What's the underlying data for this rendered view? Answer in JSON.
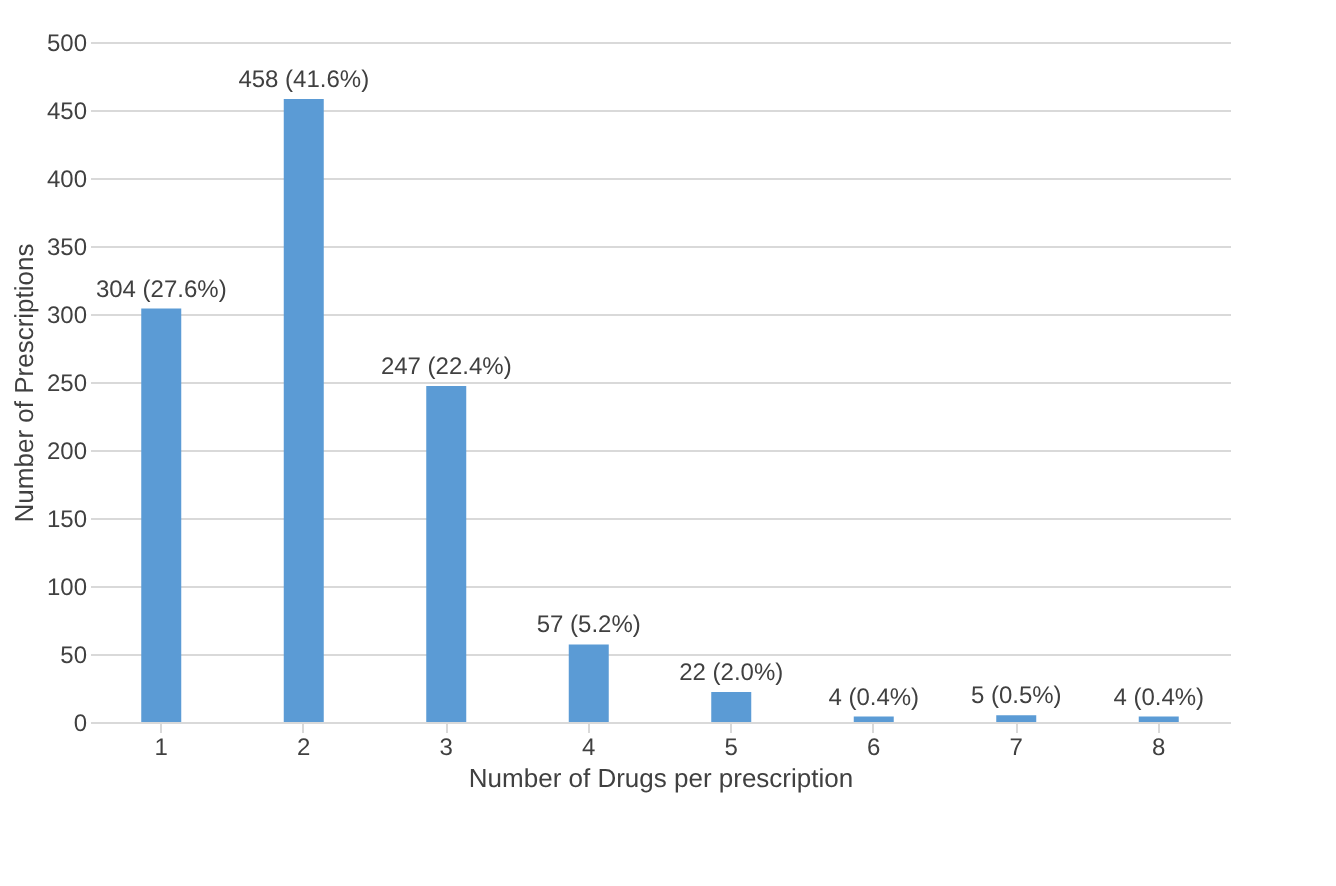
{
  "chart_data": {
    "type": "bar",
    "xlabel": "Number  of Drugs per prescription",
    "ylabel": "Number  of Prescriptions",
    "categories": [
      "1",
      "2",
      "3",
      "4",
      "5",
      "6",
      "7",
      "8"
    ],
    "values": [
      304,
      458,
      247,
      57,
      22,
      4,
      5,
      4
    ],
    "value_labels": [
      "304 (27.6%)",
      "458 (41.6%)",
      "247 (22.4%)",
      "57 (5.2%)",
      "22 (2.0%)",
      "4 (0.4%)",
      "5 (0.5%)",
      "4 (0.4%)"
    ],
    "color": "#5b9bd5",
    "ylim": [
      0,
      500
    ],
    "yticks": [
      0,
      50,
      100,
      150,
      200,
      250,
      300,
      350,
      400,
      450,
      500
    ],
    "grid": "y"
  }
}
